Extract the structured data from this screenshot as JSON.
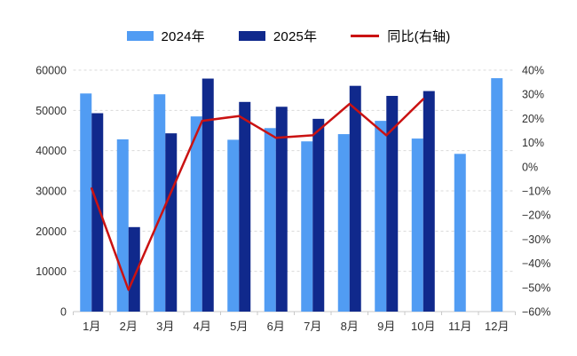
{
  "chart_data": {
    "type": "bar",
    "subtype": "grouped-bars-with-line",
    "title": "",
    "categories": [
      "1月",
      "2月",
      "3月",
      "4月",
      "5月",
      "6月",
      "7月",
      "8月",
      "9月",
      "10月",
      "11月",
      "12月"
    ],
    "series": [
      {
        "name": "2024年",
        "type": "bar",
        "axis": "left",
        "color": "#519CF3",
        "values": [
          54200,
          42800,
          54000,
          48500,
          42700,
          45600,
          42300,
          44100,
          47400,
          43000,
          39200,
          58000
        ]
      },
      {
        "name": "2025年",
        "type": "bar",
        "axis": "left",
        "color": "#10298C",
        "values": [
          49300,
          21000,
          44300,
          57900,
          52100,
          50900,
          47900,
          56100,
          53600,
          54800,
          null,
          null
        ]
      },
      {
        "name": "同比(右轴)",
        "type": "line",
        "axis": "right",
        "color": "#CA1212",
        "values": [
          -9,
          -51,
          -16,
          19,
          21,
          12,
          13,
          26,
          13,
          28,
          null,
          null
        ]
      }
    ],
    "left_axis": {
      "min": 0,
      "max": 60000,
      "step": 10000,
      "ticks": [
        "0",
        "10000",
        "20000",
        "30000",
        "40000",
        "50000",
        "60000"
      ]
    },
    "right_axis": {
      "min": -60,
      "max": 40,
      "step": 10,
      "ticks": [
        "40%",
        "30%",
        "20%",
        "10%",
        "0%",
        "−10%",
        "−20%",
        "−30%",
        "−40%",
        "−50%",
        "−60%"
      ]
    },
    "legend_position": "top",
    "grid": "horizontal-dashed",
    "grid_color": "#d9d9d9",
    "axis_line_color": "#c9c9c9"
  }
}
